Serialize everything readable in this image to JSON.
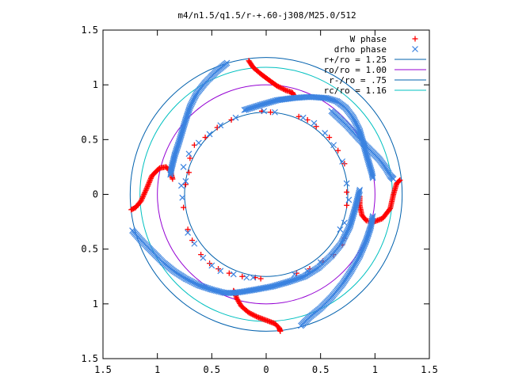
{
  "chart_data": {
    "type": "scatter",
    "title": "m4/n1.5/q1.5/r-+.60-j308/M25.0/512",
    "xlabel": "",
    "ylabel": "",
    "xlim": [
      -1.5,
      1.5
    ],
    "ylim": [
      -1.5,
      1.5
    ],
    "aspect": "equal",
    "grid": false,
    "legend_position": "top-right",
    "x_ticks": [
      {
        "value": -1.5,
        "label": "1.5"
      },
      {
        "value": -1.0,
        "label": "1"
      },
      {
        "value": -0.5,
        "label": "0.5"
      },
      {
        "value": 0.0,
        "label": "0"
      },
      {
        "value": 0.5,
        "label": "0.5"
      },
      {
        "value": 1.0,
        "label": "1"
      },
      {
        "value": 1.5,
        "label": "1.5"
      }
    ],
    "y_ticks": [
      {
        "value": 1.5,
        "label": "1.5"
      },
      {
        "value": 1.0,
        "label": "1"
      },
      {
        "value": 0.5,
        "label": "0.5"
      },
      {
        "value": 0.0,
        "label": "0"
      },
      {
        "value": -0.5,
        "label": "0.5"
      },
      {
        "value": -1.0,
        "label": "1"
      },
      {
        "value": -1.5,
        "label": "1.5"
      }
    ],
    "circles": [
      {
        "name": "r+/ro = 1.25",
        "r": 1.25,
        "color": "#0060ad"
      },
      {
        "name": "ro/ro = 1.00",
        "r": 1.0,
        "color": "#9400d3"
      },
      {
        "name": "r-/ro = .75",
        "r": 0.75,
        "color": "#0060ad"
      },
      {
        "name": "rc/ro = 1.16",
        "r": 1.16,
        "color": "#00c0c0"
      }
    ],
    "series": [
      {
        "name": "W phase",
        "marker": "plus",
        "color": "#ff0000",
        "arms": [
          [
            [
              -0.16,
              1.22
            ],
            [
              -0.12,
              1.16
            ],
            [
              -0.05,
              1.1
            ],
            [
              0.03,
              1.04
            ],
            [
              0.1,
              0.99
            ],
            [
              0.18,
              0.95
            ],
            [
              0.24,
              0.93
            ],
            [
              0.25,
              0.91
            ]
          ],
          [
            [
              0.86,
              -0.02
            ],
            [
              0.86,
              -0.1
            ],
            [
              0.88,
              -0.19
            ],
            [
              0.92,
              -0.24
            ],
            [
              0.99,
              -0.25
            ],
            [
              1.07,
              -0.22
            ],
            [
              1.14,
              -0.13
            ],
            [
              1.17,
              0.0
            ],
            [
              1.2,
              0.1
            ],
            [
              1.23,
              0.13
            ]
          ],
          [
            [
              0.13,
              -1.25
            ],
            [
              0.12,
              -1.22
            ],
            [
              0.08,
              -1.18
            ],
            [
              0.0,
              -1.15
            ],
            [
              -0.08,
              -1.12
            ],
            [
              -0.16,
              -1.08
            ],
            [
              -0.23,
              -1.02
            ],
            [
              -0.27,
              -0.95
            ],
            [
              -0.29,
              -0.9
            ],
            [
              -0.3,
              -0.88
            ]
          ],
          [
            [
              -1.24,
              -0.14
            ],
            [
              -1.2,
              -0.12
            ],
            [
              -1.15,
              -0.06
            ],
            [
              -1.1,
              0.05
            ],
            [
              -1.05,
              0.17
            ],
            [
              -0.98,
              0.24
            ],
            [
              -0.92,
              0.25
            ],
            [
              -0.88,
              0.21
            ],
            [
              -0.86,
              0.14
            ]
          ]
        ],
        "scatter": [
          [
            -0.66,
            0.45
          ],
          [
            -0.7,
            0.33
          ],
          [
            -0.71,
            0.2
          ],
          [
            -0.74,
            0.09
          ],
          [
            -0.76,
            -0.12
          ],
          [
            -0.72,
            -0.32
          ],
          [
            -0.68,
            -0.42
          ],
          [
            -0.6,
            -0.55
          ],
          [
            -0.52,
            -0.63
          ],
          [
            -0.44,
            -0.68
          ],
          [
            -0.34,
            -0.72
          ],
          [
            -0.22,
            -0.75
          ],
          [
            -0.1,
            -0.76
          ],
          [
            -0.05,
            -0.77
          ],
          [
            0.28,
            -0.72
          ],
          [
            0.4,
            -0.68
          ],
          [
            0.52,
            -0.61
          ],
          [
            0.62,
            -0.55
          ],
          [
            0.7,
            -0.46
          ],
          [
            0.72,
            -0.4
          ],
          [
            0.74,
            -0.1
          ],
          [
            0.74,
            0.02
          ],
          [
            0.72,
            0.28
          ],
          [
            0.66,
            0.4
          ],
          [
            0.58,
            0.52
          ],
          [
            0.46,
            0.62
          ],
          [
            0.38,
            0.68
          ],
          [
            0.3,
            0.71
          ],
          [
            0.04,
            0.75
          ],
          [
            -0.04,
            0.76
          ],
          [
            -0.32,
            0.68
          ],
          [
            -0.45,
            0.61
          ],
          [
            -0.56,
            0.52
          ]
        ]
      },
      {
        "name": "drho phase",
        "marker": "cross",
        "color": "#3b83e0",
        "arms": [
          [
            [
              -0.36,
              1.2
            ],
            [
              -0.46,
              1.12
            ],
            [
              -0.56,
              1.02
            ],
            [
              -0.64,
              0.92
            ],
            [
              -0.7,
              0.8
            ],
            [
              -0.74,
              0.68
            ],
            [
              -0.77,
              0.58
            ],
            [
              -0.8,
              0.48
            ],
            [
              -0.84,
              0.36
            ],
            [
              -0.87,
              0.24
            ],
            [
              -0.88,
              0.18
            ]
          ],
          [
            [
              -0.2,
              0.77
            ],
            [
              -0.04,
              0.82
            ],
            [
              0.1,
              0.86
            ],
            [
              0.25,
              0.88
            ],
            [
              0.4,
              0.89
            ],
            [
              0.55,
              0.88
            ],
            [
              0.65,
              0.85
            ],
            [
              0.73,
              0.79
            ],
            [
              0.8,
              0.7
            ],
            [
              0.86,
              0.58
            ],
            [
              0.9,
              0.44
            ],
            [
              0.94,
              0.3
            ],
            [
              0.97,
              0.2
            ],
            [
              0.98,
              0.15
            ]
          ],
          [
            [
              0.6,
              0.76
            ],
            [
              0.74,
              0.63
            ],
            [
              0.86,
              0.5
            ],
            [
              0.96,
              0.4
            ],
            [
              1.04,
              0.32
            ],
            [
              1.1,
              0.24
            ],
            [
              1.14,
              0.17
            ],
            [
              1.17,
              0.14
            ]
          ],
          [
            [
              0.86,
              0.04
            ],
            [
              0.82,
              -0.12
            ],
            [
              0.77,
              -0.29
            ],
            [
              0.69,
              -0.45
            ],
            [
              0.6,
              -0.56
            ],
            [
              0.48,
              -0.67
            ],
            [
              0.35,
              -0.75
            ],
            [
              0.2,
              -0.8
            ],
            [
              0.06,
              -0.84
            ],
            [
              -0.1,
              -0.87
            ],
            [
              -0.22,
              -0.89
            ],
            [
              -0.3,
              -0.9
            ]
          ],
          [
            [
              -1.23,
              -0.33
            ],
            [
              -1.15,
              -0.42
            ],
            [
              -1.05,
              -0.52
            ],
            [
              -0.95,
              -0.62
            ],
            [
              -0.85,
              -0.7
            ],
            [
              -0.74,
              -0.77
            ],
            [
              -0.62,
              -0.83
            ],
            [
              -0.5,
              -0.87
            ],
            [
              -0.38,
              -0.9
            ],
            [
              -0.3,
              -0.9
            ]
          ],
          [
            [
              0.98,
              -0.2
            ],
            [
              0.96,
              -0.3
            ],
            [
              0.92,
              -0.42
            ],
            [
              0.86,
              -0.56
            ],
            [
              0.78,
              -0.7
            ],
            [
              0.7,
              -0.82
            ],
            [
              0.6,
              -0.94
            ],
            [
              0.5,
              -1.04
            ],
            [
              0.4,
              -1.12
            ],
            [
              0.32,
              -1.2
            ]
          ]
        ],
        "scatter": [
          [
            -0.71,
            0.37
          ],
          [
            -0.76,
            0.25
          ],
          [
            -0.74,
            0.12
          ],
          [
            -0.78,
            0.08
          ],
          [
            -0.77,
            -0.03
          ],
          [
            -0.72,
            -0.35
          ],
          [
            -0.66,
            -0.45
          ],
          [
            -0.58,
            -0.58
          ],
          [
            -0.5,
            -0.65
          ],
          [
            -0.42,
            -0.7
          ],
          [
            -0.3,
            -0.73
          ],
          [
            -0.18,
            -0.76
          ],
          [
            -0.12,
            -0.76
          ],
          [
            0.26,
            -0.73
          ],
          [
            0.38,
            -0.7
          ],
          [
            0.5,
            -0.62
          ],
          [
            0.6,
            -0.56
          ],
          [
            0.68,
            -0.32
          ],
          [
            0.72,
            -0.26
          ],
          [
            0.76,
            -0.05
          ],
          [
            0.74,
            0.1
          ],
          [
            0.7,
            0.3
          ],
          [
            0.62,
            0.45
          ],
          [
            0.54,
            0.56
          ],
          [
            0.44,
            0.65
          ],
          [
            0.34,
            0.7
          ],
          [
            0.08,
            0.75
          ],
          [
            -0.02,
            0.76
          ],
          [
            -0.28,
            0.7
          ],
          [
            -0.42,
            0.63
          ],
          [
            -0.52,
            0.55
          ],
          [
            -0.62,
            0.47
          ]
        ]
      }
    ]
  }
}
